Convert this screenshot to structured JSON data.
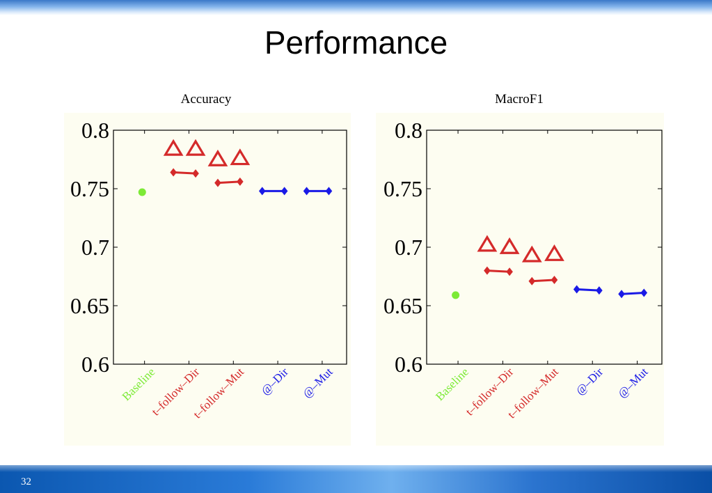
{
  "slide": {
    "title": "Performance",
    "page_number": "32"
  },
  "colors": {
    "baseline": "#7dea36",
    "follow": "#d42a2a",
    "at": "#1a1ae6",
    "panel_bg": "#fdfdf1"
  },
  "chart_data": [
    {
      "type": "scatter",
      "title": "Accuracy",
      "ylim": [
        0.6,
        0.8
      ],
      "yticks": [
        "0.8",
        "0.75",
        "0.7",
        "0.65",
        "0.6"
      ],
      "categories": [
        "Baseline",
        "t–follow–Dir",
        "t–follow–Mut",
        "@–Dir",
        "@–Mut"
      ],
      "category_colors": [
        "#7dea36",
        "#d42a2a",
        "#d42a2a",
        "#1a1ae6",
        "#1a1ae6"
      ],
      "baseline": 0.747,
      "triangles": [
        {
          "category": 1,
          "values": [
            0.784,
            0.784
          ]
        },
        {
          "category": 2,
          "values": [
            0.775,
            0.776
          ]
        }
      ],
      "segments": [
        {
          "category": 1,
          "values": [
            0.764,
            0.763
          ],
          "color": "#d42a2a"
        },
        {
          "category": 2,
          "values": [
            0.755,
            0.756
          ],
          "color": "#d42a2a"
        },
        {
          "category": 3,
          "values": [
            0.748,
            0.748
          ],
          "color": "#1a1ae6"
        },
        {
          "category": 4,
          "values": [
            0.748,
            0.748
          ],
          "color": "#1a1ae6"
        }
      ],
      "grid": false
    },
    {
      "type": "scatter",
      "title": "MacroF1",
      "ylim": [
        0.6,
        0.8
      ],
      "yticks": [
        "0.8",
        "0.75",
        "0.7",
        "0.65",
        "0.6"
      ],
      "categories": [
        "Baseline",
        "t–follow–Dir",
        "t–follow–Mut",
        "@–Dir",
        "@–Mut"
      ],
      "category_colors": [
        "#7dea36",
        "#d42a2a",
        "#d42a2a",
        "#1a1ae6",
        "#1a1ae6"
      ],
      "baseline": 0.659,
      "triangles": [
        {
          "category": 1,
          "values": [
            0.702,
            0.7
          ]
        },
        {
          "category": 2,
          "values": [
            0.693,
            0.694
          ]
        }
      ],
      "segments": [
        {
          "category": 1,
          "values": [
            0.68,
            0.679
          ],
          "color": "#d42a2a"
        },
        {
          "category": 2,
          "values": [
            0.671,
            0.672
          ],
          "color": "#d42a2a"
        },
        {
          "category": 3,
          "values": [
            0.664,
            0.663
          ],
          "color": "#1a1ae6"
        },
        {
          "category": 4,
          "values": [
            0.66,
            0.661
          ],
          "color": "#1a1ae6"
        }
      ],
      "grid": false
    }
  ]
}
